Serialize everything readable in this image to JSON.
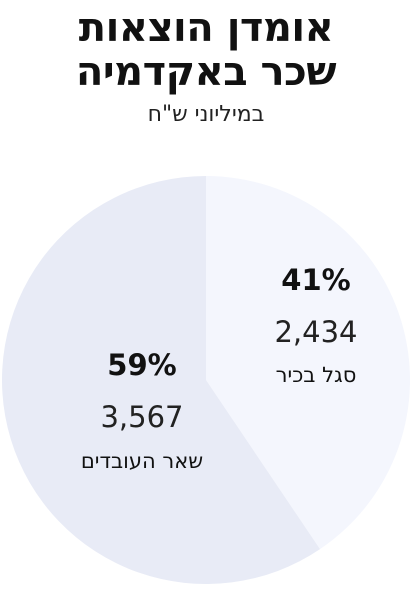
{
  "title_lines": [
    "אומדן הוצאות",
    "שכר באקדמיה"
  ],
  "subtitle": "במיליוני ש\"ח",
  "colors": {
    "slice_senior": "#f4f6fd",
    "slice_others": "#e8ebf6",
    "text": "#111111"
  },
  "chart_data": {
    "type": "pie",
    "title": "אומדן הוצאות שכר באקדמיה",
    "subtitle": "במיליוני ש\"ח",
    "slices": [
      {
        "label": "סגל בכיר",
        "value": 2434,
        "value_label": "2,434",
        "percent_label": "41%"
      },
      {
        "label": "שאר העובדים",
        "value": 3567,
        "value_label": "3,567",
        "percent_label": "59%"
      }
    ]
  }
}
